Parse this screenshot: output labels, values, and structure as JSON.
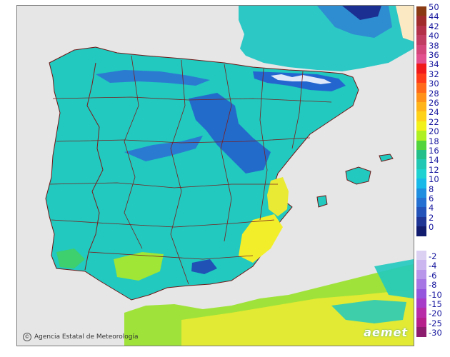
{
  "credit_text": "Agencia Estatal de Meteorología",
  "credit_symbol": "©",
  "brand_text": "aemet",
  "colors": {
    "sea": "#e6e6e6",
    "land_base": "#22c9c0",
    "border": "#7a1f1f",
    "coast": "#6e1818"
  },
  "legend": {
    "positive": [
      {
        "label": "50",
        "color": "#8a3a12"
      },
      {
        "label": "44",
        "color": "#a02c2c"
      },
      {
        "label": "42",
        "color": "#b3324a"
      },
      {
        "label": "40",
        "color": "#c23d62"
      },
      {
        "label": "38",
        "color": "#d3467a"
      },
      {
        "label": "36",
        "color": "#e2508f"
      },
      {
        "label": "34",
        "color": "#f01a1a"
      },
      {
        "label": "32",
        "color": "#ff3c1a"
      },
      {
        "label": "30",
        "color": "#ff6a1a"
      },
      {
        "label": "28",
        "color": "#ff9219"
      },
      {
        "label": "26",
        "color": "#ffb41a"
      },
      {
        "label": "24",
        "color": "#ffd21a"
      },
      {
        "label": "22",
        "color": "#f2f21a"
      },
      {
        "label": "20",
        "color": "#aef022"
      },
      {
        "label": "18",
        "color": "#52d43c"
      },
      {
        "label": "16",
        "color": "#23bf8a"
      },
      {
        "label": "14",
        "color": "#21c8b4"
      },
      {
        "label": "12",
        "color": "#1ed2d2"
      },
      {
        "label": "10",
        "color": "#16b9e8"
      },
      {
        "label": "8",
        "color": "#1d8ee0"
      },
      {
        "label": "6",
        "color": "#2470d2"
      },
      {
        "label": "4",
        "color": "#2352b8"
      },
      {
        "label": "2",
        "color": "#1f3596"
      },
      {
        "label": "0",
        "color": "#121c6e"
      }
    ],
    "negative": [
      {
        "label": "-2",
        "color": "#dcd0f2"
      },
      {
        "label": "-4",
        "color": "#cbb6ef"
      },
      {
        "label": "-6",
        "color": "#b896ea"
      },
      {
        "label": "-8",
        "color": "#a676e4"
      },
      {
        "label": "-10",
        "color": "#9556de"
      },
      {
        "label": "-15",
        "color": "#a63cc8"
      },
      {
        "label": "-20",
        "color": "#b82ca8"
      },
      {
        "label": "-25",
        "color": "#b5208a"
      },
      {
        "label": "-30",
        "color": "#8c1c6e"
      }
    ]
  }
}
